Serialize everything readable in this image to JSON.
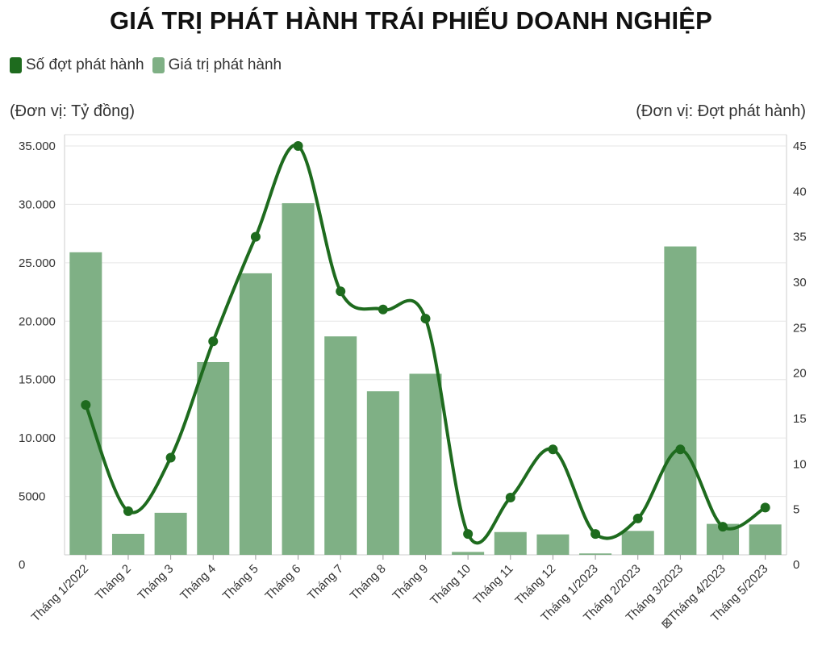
{
  "chart_data": {
    "type": "bar",
    "title": "GIÁ TRỊ PHÁT HÀNH TRÁI PHIẾU DOANH NGHIỆP",
    "left_axis_label": "(Đơn vị: Tỷ đồng)",
    "right_axis_label": "(Đơn vị: Đợt phát hành)",
    "legend_position": "top-left",
    "categories": [
      "Tháng 1/2022",
      "Tháng 2",
      "Tháng 3",
      "Tháng 4",
      "Tháng 5",
      "Tháng 6",
      "Tháng 7",
      "Tháng 8",
      "Tháng 9",
      "Tháng 10",
      "Tháng 11",
      "Tháng 12",
      "Tháng 1/2023",
      "Tháng 2/2023",
      "Tháng 3/2023",
      "⊠Tháng 4/2023",
      "Tháng 5/2023"
    ],
    "y_left": {
      "min": 0,
      "max": 35000,
      "ticks": [
        0,
        5000,
        10000,
        15000,
        20000,
        25000,
        30000,
        35000
      ],
      "tick_labels": [
        "0",
        "5000",
        "10.000",
        "15.000",
        "20.000",
        "25.000",
        "30.000",
        "35.000"
      ]
    },
    "y_right": {
      "min": 0,
      "max": 45,
      "ticks": [
        0,
        5,
        10,
        15,
        20,
        25,
        30,
        35,
        40,
        45
      ],
      "tick_labels": [
        "0",
        "5",
        "10",
        "15",
        "20",
        "25",
        "30",
        "35",
        "40",
        "45"
      ]
    },
    "grid": true,
    "series": [
      {
        "name": "Giá trị phát hành",
        "type": "bar",
        "axis": "left",
        "color": "#7fb085",
        "values": [
          25900,
          1800,
          3600,
          16500,
          24100,
          30100,
          18700,
          14000,
          15500,
          250,
          1950,
          1750,
          120,
          2050,
          26400,
          2650,
          2600
        ]
      },
      {
        "name": "Số đợt phát hành",
        "type": "line",
        "axis": "right",
        "color": "#1e6b1e",
        "values": [
          16.5,
          4.8,
          10.7,
          23.5,
          35,
          45,
          29,
          27,
          26,
          2.3,
          6.3,
          11.6,
          2.3,
          4,
          11.6,
          3.1,
          5.2
        ]
      }
    ]
  }
}
